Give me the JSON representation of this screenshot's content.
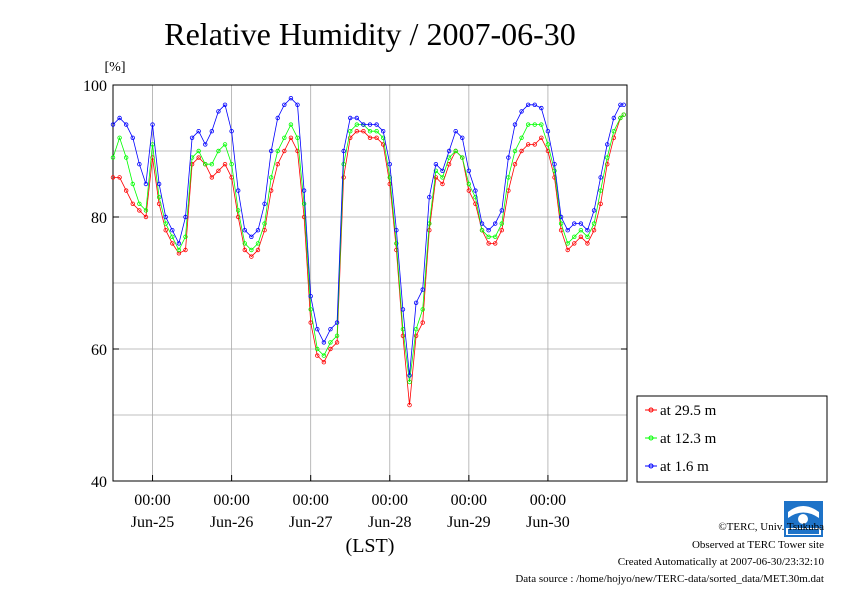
{
  "chart_data": {
    "type": "line",
    "title": "Relative Humidity / 2007-06-30",
    "y_unit_label": "[%]",
    "xlabel": "(LST)",
    "xlim_days": [
      "2007-06-24 12:00",
      "2007-07-01 00:00"
    ],
    "ylim": [
      40,
      100
    ],
    "y_ticks": [
      40,
      60,
      80,
      100
    ],
    "y_tick_labels": [
      "40",
      "60",
      "80",
      "100"
    ],
    "x_ticks": [
      {
        "time": "2007-06-25 00:00",
        "top": "00:00",
        "bottom": "Jun-25"
      },
      {
        "time": "2007-06-26 00:00",
        "top": "00:00",
        "bottom": "Jun-26"
      },
      {
        "time": "2007-06-27 00:00",
        "top": "00:00",
        "bottom": "Jun-27"
      },
      {
        "time": "2007-06-28 00:00",
        "top": "00:00",
        "bottom": "Jun-28"
      },
      {
        "time": "2007-06-29 00:00",
        "top": "00:00",
        "bottom": "Jun-29"
      },
      {
        "time": "2007-06-30 00:00",
        "top": "00:00",
        "bottom": "Jun-30"
      }
    ],
    "grid": true,
    "legend_position": "right-bottom",
    "series": [
      {
        "name": "at 29.5 m",
        "color": "#ff0000",
        "x": [
          "2007-06-24 12:00",
          "2007-06-24 14:00",
          "2007-06-24 16:00",
          "2007-06-24 18:00",
          "2007-06-24 20:00",
          "2007-06-24 22:00",
          "2007-06-25 00:00",
          "2007-06-25 02:00",
          "2007-06-25 04:00",
          "2007-06-25 06:00",
          "2007-06-25 08:00",
          "2007-06-25 10:00",
          "2007-06-25 12:00",
          "2007-06-25 14:00",
          "2007-06-25 16:00",
          "2007-06-25 18:00",
          "2007-06-25 20:00",
          "2007-06-25 22:00",
          "2007-06-26 00:00",
          "2007-06-26 02:00",
          "2007-06-26 04:00",
          "2007-06-26 06:00",
          "2007-06-26 08:00",
          "2007-06-26 10:00",
          "2007-06-26 12:00",
          "2007-06-26 14:00",
          "2007-06-26 16:00",
          "2007-06-26 18:00",
          "2007-06-26 20:00",
          "2007-06-26 22:00",
          "2007-06-27 00:00",
          "2007-06-27 02:00",
          "2007-06-27 04:00",
          "2007-06-27 06:00",
          "2007-06-27 08:00",
          "2007-06-27 10:00",
          "2007-06-27 12:00",
          "2007-06-27 14:00",
          "2007-06-27 16:00",
          "2007-06-27 18:00",
          "2007-06-27 20:00",
          "2007-06-27 22:00",
          "2007-06-28 00:00",
          "2007-06-28 02:00",
          "2007-06-28 04:00",
          "2007-06-28 06:00",
          "2007-06-28 08:00",
          "2007-06-28 10:00",
          "2007-06-28 12:00",
          "2007-06-28 14:00",
          "2007-06-28 16:00",
          "2007-06-28 18:00",
          "2007-06-28 20:00",
          "2007-06-28 22:00",
          "2007-06-29 00:00",
          "2007-06-29 02:00",
          "2007-06-29 04:00",
          "2007-06-29 06:00",
          "2007-06-29 08:00",
          "2007-06-29 10:00",
          "2007-06-29 12:00",
          "2007-06-29 14:00",
          "2007-06-29 16:00",
          "2007-06-29 18:00",
          "2007-06-29 20:00",
          "2007-06-29 22:00",
          "2007-06-30 00:00",
          "2007-06-30 02:00",
          "2007-06-30 04:00",
          "2007-06-30 06:00",
          "2007-06-30 08:00",
          "2007-06-30 10:00",
          "2007-06-30 12:00",
          "2007-06-30 14:00",
          "2007-06-30 16:00",
          "2007-06-30 18:00",
          "2007-06-30 20:00",
          "2007-06-30 22:00",
          "2007-06-30 23:00"
        ],
        "values": [
          86,
          86,
          84,
          82,
          81,
          80,
          89,
          82,
          78,
          76,
          74.5,
          75,
          88,
          89,
          88,
          86,
          87,
          88,
          86,
          80,
          75,
          74,
          75,
          78,
          84,
          88,
          90,
          92,
          90,
          80,
          64,
          59,
          58,
          60,
          61,
          86,
          92,
          93,
          93,
          92,
          92,
          91,
          85,
          75,
          62,
          51.5,
          62,
          64,
          78,
          86,
          85,
          88,
          90,
          89,
          84,
          82,
          78,
          76,
          76,
          78,
          84,
          88,
          90,
          91,
          91,
          92,
          90,
          86,
          78,
          75,
          76,
          77,
          76,
          78,
          82,
          88,
          92,
          95,
          95.5
        ]
      },
      {
        "name": "at 12.3 m",
        "color": "#00ff00",
        "x": [
          "2007-06-24 12:00",
          "2007-06-24 14:00",
          "2007-06-24 16:00",
          "2007-06-24 18:00",
          "2007-06-24 20:00",
          "2007-06-24 22:00",
          "2007-06-25 00:00",
          "2007-06-25 02:00",
          "2007-06-25 04:00",
          "2007-06-25 06:00",
          "2007-06-25 08:00",
          "2007-06-25 10:00",
          "2007-06-25 12:00",
          "2007-06-25 14:00",
          "2007-06-25 16:00",
          "2007-06-25 18:00",
          "2007-06-25 20:00",
          "2007-06-25 22:00",
          "2007-06-26 00:00",
          "2007-06-26 02:00",
          "2007-06-26 04:00",
          "2007-06-26 06:00",
          "2007-06-26 08:00",
          "2007-06-26 10:00",
          "2007-06-26 12:00",
          "2007-06-26 14:00",
          "2007-06-26 16:00",
          "2007-06-26 18:00",
          "2007-06-26 20:00",
          "2007-06-26 22:00",
          "2007-06-27 00:00",
          "2007-06-27 02:00",
          "2007-06-27 04:00",
          "2007-06-27 06:00",
          "2007-06-27 08:00",
          "2007-06-27 10:00",
          "2007-06-27 12:00",
          "2007-06-27 14:00",
          "2007-06-27 16:00",
          "2007-06-27 18:00",
          "2007-06-27 20:00",
          "2007-06-27 22:00",
          "2007-06-28 00:00",
          "2007-06-28 02:00",
          "2007-06-28 04:00",
          "2007-06-28 06:00",
          "2007-06-28 08:00",
          "2007-06-28 10:00",
          "2007-06-28 12:00",
          "2007-06-28 14:00",
          "2007-06-28 16:00",
          "2007-06-28 18:00",
          "2007-06-28 20:00",
          "2007-06-28 22:00",
          "2007-06-29 00:00",
          "2007-06-29 02:00",
          "2007-06-29 04:00",
          "2007-06-29 06:00",
          "2007-06-29 08:00",
          "2007-06-29 10:00",
          "2007-06-29 12:00",
          "2007-06-29 14:00",
          "2007-06-29 16:00",
          "2007-06-29 18:00",
          "2007-06-29 20:00",
          "2007-06-29 22:00",
          "2007-06-30 00:00",
          "2007-06-30 02:00",
          "2007-06-30 04:00",
          "2007-06-30 06:00",
          "2007-06-30 08:00",
          "2007-06-30 10:00",
          "2007-06-30 12:00",
          "2007-06-30 14:00",
          "2007-06-30 16:00",
          "2007-06-30 18:00",
          "2007-06-30 20:00",
          "2007-06-30 22:00",
          "2007-06-30 23:00"
        ],
        "values": [
          89,
          92,
          89,
          85,
          82,
          81,
          91,
          83,
          79,
          77,
          75,
          77,
          89,
          90,
          88,
          88,
          90,
          91,
          88,
          81,
          76,
          75,
          76,
          79,
          86,
          90,
          92,
          94,
          92,
          82,
          66,
          60,
          59,
          61,
          62,
          88,
          93,
          94,
          94,
          93,
          93,
          92,
          86,
          76,
          63,
          55,
          63,
          66,
          79,
          87,
          86,
          89,
          90,
          89,
          85,
          83,
          78,
          77,
          77,
          79,
          86,
          90,
          92,
          94,
          94,
          94,
          91,
          87,
          79,
          76,
          77,
          78,
          77,
          79,
          84,
          89,
          93,
          95,
          95.5
        ]
      },
      {
        "name": "at 1.6 m",
        "color": "#0000ff",
        "x": [
          "2007-06-24 12:00",
          "2007-06-24 14:00",
          "2007-06-24 16:00",
          "2007-06-24 18:00",
          "2007-06-24 20:00",
          "2007-06-24 22:00",
          "2007-06-25 00:00",
          "2007-06-25 02:00",
          "2007-06-25 04:00",
          "2007-06-25 06:00",
          "2007-06-25 08:00",
          "2007-06-25 10:00",
          "2007-06-25 12:00",
          "2007-06-25 14:00",
          "2007-06-25 16:00",
          "2007-06-25 18:00",
          "2007-06-25 20:00",
          "2007-06-25 22:00",
          "2007-06-26 00:00",
          "2007-06-26 02:00",
          "2007-06-26 04:00",
          "2007-06-26 06:00",
          "2007-06-26 08:00",
          "2007-06-26 10:00",
          "2007-06-26 12:00",
          "2007-06-26 14:00",
          "2007-06-26 16:00",
          "2007-06-26 18:00",
          "2007-06-26 20:00",
          "2007-06-26 22:00",
          "2007-06-27 00:00",
          "2007-06-27 02:00",
          "2007-06-27 04:00",
          "2007-06-27 06:00",
          "2007-06-27 08:00",
          "2007-06-27 10:00",
          "2007-06-27 12:00",
          "2007-06-27 14:00",
          "2007-06-27 16:00",
          "2007-06-27 18:00",
          "2007-06-27 20:00",
          "2007-06-27 22:00",
          "2007-06-28 00:00",
          "2007-06-28 02:00",
          "2007-06-28 04:00",
          "2007-06-28 06:00",
          "2007-06-28 08:00",
          "2007-06-28 10:00",
          "2007-06-28 12:00",
          "2007-06-28 14:00",
          "2007-06-28 16:00",
          "2007-06-28 18:00",
          "2007-06-28 20:00",
          "2007-06-28 22:00",
          "2007-06-29 00:00",
          "2007-06-29 02:00",
          "2007-06-29 04:00",
          "2007-06-29 06:00",
          "2007-06-29 08:00",
          "2007-06-29 10:00",
          "2007-06-29 12:00",
          "2007-06-29 14:00",
          "2007-06-29 16:00",
          "2007-06-29 18:00",
          "2007-06-29 20:00",
          "2007-06-29 22:00",
          "2007-06-30 00:00",
          "2007-06-30 02:00",
          "2007-06-30 04:00",
          "2007-06-30 06:00",
          "2007-06-30 08:00",
          "2007-06-30 10:00",
          "2007-06-30 12:00",
          "2007-06-30 14:00",
          "2007-06-30 16:00",
          "2007-06-30 18:00",
          "2007-06-30 20:00",
          "2007-06-30 22:00",
          "2007-06-30 23:00"
        ],
        "values": [
          94,
          95,
          94,
          92,
          88,
          85,
          94,
          85,
          80,
          78,
          76,
          80,
          92,
          93,
          91,
          93,
          96,
          97,
          93,
          84,
          78,
          77,
          78,
          82,
          90,
          95,
          97,
          98,
          97,
          84,
          68,
          63,
          61,
          63,
          64,
          90,
          95,
          95,
          94,
          94,
          94,
          93,
          88,
          78,
          66,
          56,
          67,
          69,
          83,
          88,
          87,
          90,
          93,
          92,
          87,
          84,
          79,
          78,
          79,
          81,
          89,
          94,
          96,
          97,
          97,
          96.5,
          93,
          88,
          80,
          78,
          79,
          79,
          78,
          81,
          86,
          91,
          95,
          97,
          97
        ]
      }
    ]
  },
  "footer": {
    "credit": "©TERC, Univ. Tsukuba",
    "observed": "Observed at TERC Tower site",
    "created": "Created Automatically at 2007-06-30/23:32:10",
    "source": "Data source : /home/hojyo/new/TERC-data/sorted_data/MET.30m.dat"
  }
}
